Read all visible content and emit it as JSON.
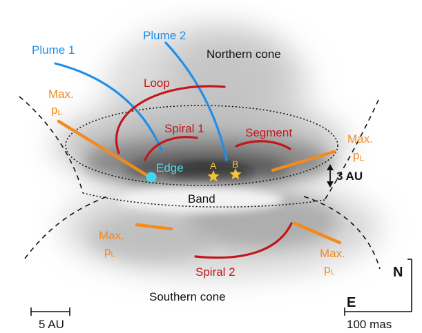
{
  "labels": {
    "plume1": "Plume 1",
    "plume2": "Plume 2",
    "northern_cone": "Northern cone",
    "loop": "Loop",
    "spiral1": "Spiral 1",
    "segment": "Segment",
    "edge": "Edge",
    "star_a": "A",
    "star_b": "B",
    "band": "Band",
    "height_marker": "3 AU",
    "max_pl_left_top": "Max.",
    "max_pl_right_top": "Max.",
    "max_pl_left_bottom": "Max.",
    "max_pl_right_bottom": "Max.",
    "spiral2": "Spiral 2",
    "southern_cone": "Southern cone",
    "scalebar_au": "5 AU",
    "scalebar_mas": "100 mas",
    "compass_north": "N",
    "compass_east": "E"
  },
  "max_pl_symbol": "p",
  "max_pl_subscript": "L",
  "colors": {
    "plume": "#1f8ee8",
    "spiral": "#c2161b",
    "max_pl": "#f28a1e",
    "edge_dot": "#3fd6ee",
    "star": "#f6c23a"
  }
}
